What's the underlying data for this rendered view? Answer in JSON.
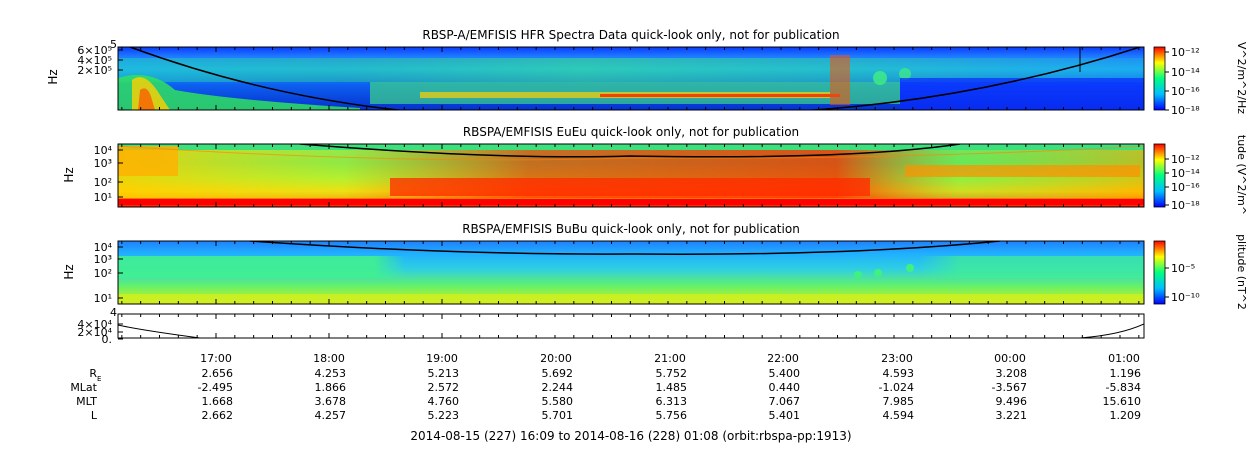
{
  "chart_data": [
    {
      "type": "heatmap",
      "title": "RBSP-A/EMFISIS  HFR Spectra Data quick-look only, not for publication",
      "ylabel": "Hz",
      "y_ticks": [
        "6×10⁵",
        "4×10⁵",
        "2×10⁵"
      ],
      "y_top_label": "5",
      "colorbar": {
        "label": "V^2/m^2/Hz",
        "ticks": [
          "10⁻¹²",
          "10⁻¹⁴",
          "10⁻¹⁶",
          "10⁻¹⁸"
        ]
      },
      "colormap": [
        "#0000ff",
        "#00bfff",
        "#00ff80",
        "#ffff00",
        "#ff0000"
      ]
    },
    {
      "type": "heatmap",
      "title": "RBSPA/EMFISIS  EuEu quick-look only, not for publication",
      "ylabel": "Hz",
      "y_ticks": [
        "10⁴",
        "10³",
        "10²",
        "10¹"
      ],
      "y_scale": "log",
      "colorbar": {
        "label": "tude (V^2/m^",
        "ticks": [
          "10⁻¹²",
          "10⁻¹⁴",
          "10⁻¹⁶",
          "10⁻¹⁸"
        ]
      }
    },
    {
      "type": "heatmap",
      "title": "RBSPA/EMFISIS  BuBu quick-look only, not for publication",
      "ylabel": "Hz",
      "y_ticks": [
        "10⁴",
        "10³",
        "10²",
        "10¹"
      ],
      "y_scale": "log",
      "colorbar": {
        "label": "plitude (nT^2",
        "ticks": [
          "10⁻⁵",
          "10⁻¹⁰"
        ]
      }
    },
    {
      "type": "line",
      "y_ticks": [
        "4×10⁴",
        "2×10⁴",
        "0."
      ],
      "y_top_label": "4"
    }
  ],
  "time_axis": {
    "tick_labels": [
      "17:00",
      "18:00",
      "19:00",
      "20:00",
      "21:00",
      "22:00",
      "23:00",
      "00:00",
      "01:00"
    ]
  },
  "ephemeris": [
    {
      "label": "R",
      "subscript": "E",
      "values": [
        "2.656",
        "4.253",
        "5.213",
        "5.692",
        "5.752",
        "5.400",
        "4.593",
        "3.208",
        "1.196"
      ]
    },
    {
      "label": "MLat",
      "values": [
        "-2.495",
        "1.866",
        "2.572",
        "2.244",
        "1.485",
        "0.440",
        "-1.024",
        "-3.567",
        "-5.834"
      ]
    },
    {
      "label": "MLT",
      "values": [
        "1.668",
        "3.678",
        "4.760",
        "5.580",
        "6.313",
        "7.067",
        "7.985",
        "9.496",
        "15.610"
      ]
    },
    {
      "label": "L",
      "values": [
        "2.662",
        "4.257",
        "5.223",
        "5.701",
        "5.756",
        "5.401",
        "4.594",
        "3.221",
        "1.209"
      ]
    }
  ],
  "footer": "2014-08-15 (227) 16:09 to 2014-08-16 (228) 01:08 (orbit:rbspa-pp:1913)"
}
